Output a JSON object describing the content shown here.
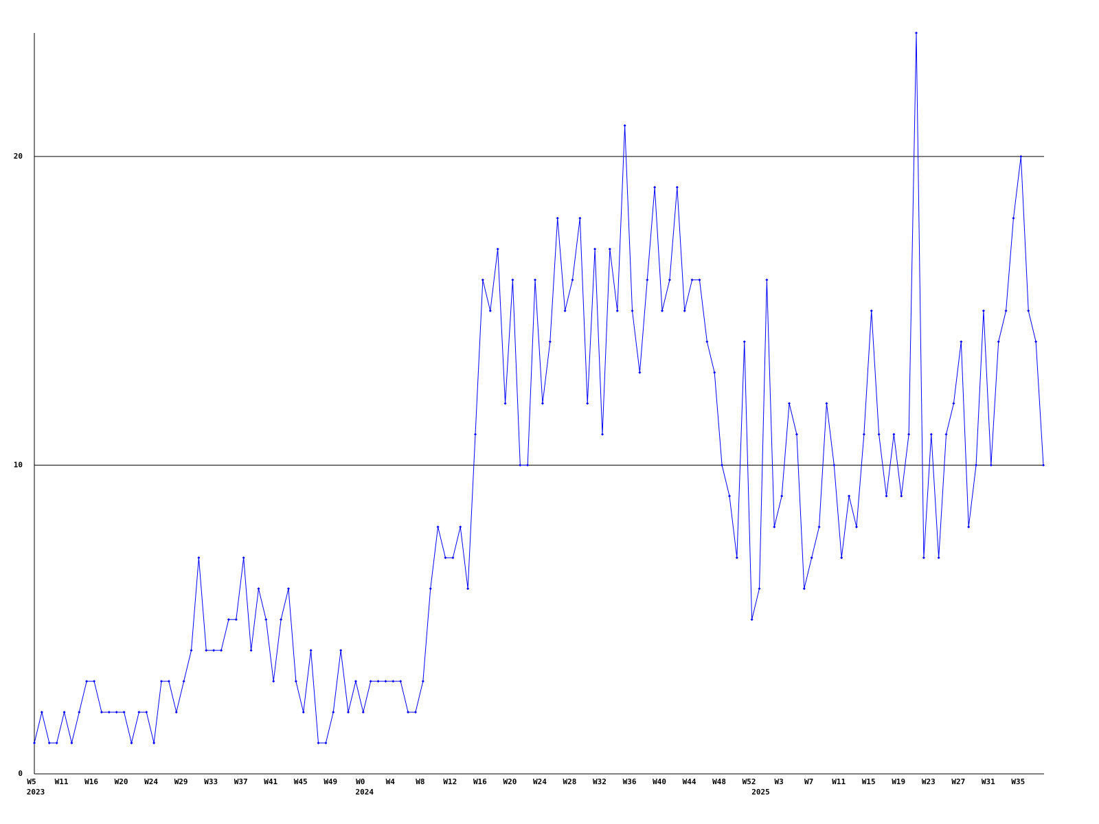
{
  "chart_data": {
    "type": "line",
    "categories": [
      "W5",
      null,
      null,
      null,
      "W11",
      null,
      null,
      null,
      "W16",
      null,
      null,
      null,
      "W20",
      null,
      null,
      null,
      "W24",
      null,
      null,
      null,
      "W29",
      null,
      null,
      null,
      "W33",
      null,
      null,
      null,
      "W37",
      null,
      null,
      null,
      "W41",
      null,
      null,
      null,
      "W45",
      null,
      null,
      null,
      "W49",
      null,
      null,
      null,
      "W0",
      null,
      null,
      null,
      "W4",
      null,
      null,
      null,
      "W8",
      null,
      null,
      null,
      "W12",
      null,
      null,
      null,
      "W16",
      null,
      null,
      null,
      "W20",
      null,
      null,
      null,
      "W24",
      null,
      null,
      null,
      "W28",
      null,
      null,
      null,
      "W32",
      null,
      null,
      null,
      "W36",
      null,
      null,
      null,
      "W40",
      null,
      null,
      null,
      "W44",
      null,
      null,
      null,
      "W48",
      null,
      null,
      null,
      "W52",
      null,
      null,
      null,
      "W3",
      null,
      null,
      null,
      "W7",
      null,
      null,
      null,
      "W11",
      null,
      null,
      null,
      "W15",
      null,
      null,
      null,
      "W19",
      null,
      null,
      null,
      "W23",
      null,
      null,
      null,
      "W27",
      null,
      null,
      null,
      "W31",
      null,
      null,
      null,
      "W35",
      null,
      null,
      null
    ],
    "year_labels": [
      "2023",
      null,
      null,
      null,
      null,
      null,
      null,
      null,
      null,
      null,
      null,
      null,
      null,
      null,
      null,
      null,
      null,
      null,
      null,
      null,
      null,
      null,
      null,
      null,
      null,
      null,
      null,
      null,
      null,
      null,
      null,
      null,
      null,
      null,
      null,
      null,
      null,
      null,
      null,
      null,
      null,
      null,
      null,
      null,
      "2024",
      null,
      null,
      null,
      null,
      null,
      null,
      null,
      null,
      null,
      null,
      null,
      null,
      null,
      null,
      null,
      null,
      null,
      null,
      null,
      null,
      null,
      null,
      null,
      null,
      null,
      null,
      null,
      null,
      null,
      null,
      null,
      null,
      null,
      null,
      null,
      null,
      null,
      null,
      null,
      null,
      null,
      null,
      null,
      null,
      null,
      null,
      null,
      null,
      null,
      null,
      null,
      null,
      "2025",
      null,
      null,
      null,
      null,
      null,
      null,
      null,
      null,
      null,
      null,
      null,
      null,
      null,
      null,
      null,
      null,
      null,
      null,
      null,
      null,
      null,
      null,
      null,
      null,
      null,
      null,
      null,
      null,
      null,
      null,
      null,
      null,
      null,
      null,
      null,
      null,
      null,
      null
    ],
    "series": [
      {
        "color": "#0000ff",
        "values": [
          1,
          2,
          1,
          1,
          2,
          1,
          2,
          3,
          3,
          2,
          2,
          2,
          2,
          1,
          2,
          2,
          1,
          3,
          3,
          2,
          3,
          4,
          7,
          4,
          4,
          4,
          5,
          5,
          7,
          4,
          6,
          5,
          3,
          5,
          6,
          3,
          2,
          4,
          1,
          1,
          2,
          4,
          2,
          3,
          2,
          3,
          3,
          3,
          3,
          3,
          2,
          2,
          3,
          6,
          8,
          7,
          7,
          8,
          6,
          11,
          16,
          15,
          17,
          12,
          16,
          10,
          10,
          16,
          12,
          14,
          18,
          15,
          16,
          18,
          12,
          17,
          11,
          17,
          15,
          21,
          15,
          13,
          16,
          19,
          15,
          16,
          19,
          15,
          16,
          16,
          14,
          13,
          10,
          9,
          7,
          14,
          5,
          6,
          16,
          8,
          9,
          12,
          11,
          6,
          7,
          8,
          12,
          10,
          7,
          9,
          8,
          11,
          15,
          11,
          9,
          11,
          9,
          11,
          24,
          7,
          11,
          7,
          11,
          12,
          14,
          8,
          10,
          15,
          10,
          14,
          15,
          18,
          20,
          15,
          14,
          10
        ]
      }
    ],
    "ylim": [
      0,
      24
    ],
    "yticks": [
      0,
      10,
      20
    ],
    "grid": true
  }
}
